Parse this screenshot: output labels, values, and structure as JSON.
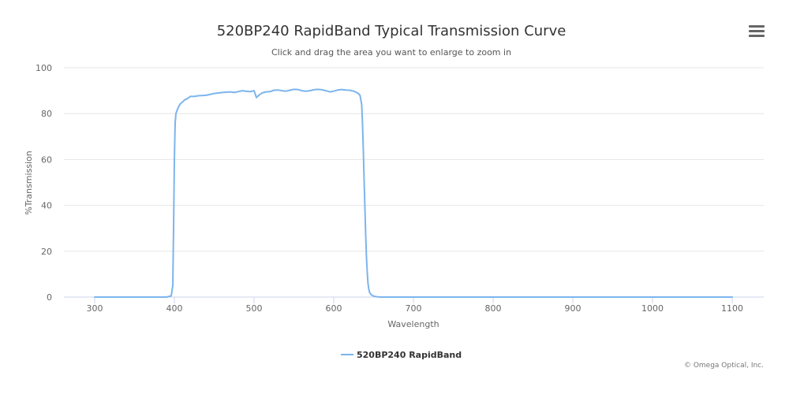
{
  "chart_data": {
    "type": "line",
    "title": "520BP240 RapidBand Typical Transmission Curve",
    "subtitle": "Click and drag the area you want to enlarge to zoom in",
    "xlabel": "Wavelength",
    "ylabel": "%Transmission",
    "xlim": [
      300,
      1100
    ],
    "ylim": [
      0,
      100
    ],
    "xticks": [
      300,
      400,
      500,
      600,
      700,
      800,
      900,
      1000,
      1100
    ],
    "yticks": [
      0,
      20,
      40,
      60,
      80,
      100
    ],
    "grid": "horizontal",
    "legend_position": "bottom-center",
    "series": [
      {
        "name": "520BP240 RapidBand",
        "color": "#7cb5ec",
        "x": [
          300,
          350,
          390,
          396,
          398,
          399,
          400,
          401,
          402,
          404,
          406,
          408,
          410,
          413,
          416,
          420,
          425,
          430,
          440,
          450,
          460,
          470,
          475,
          480,
          485,
          490,
          495,
          500,
          503,
          506,
          510,
          515,
          520,
          525,
          530,
          535,
          540,
          545,
          550,
          555,
          560,
          565,
          570,
          575,
          580,
          585,
          590,
          595,
          600,
          605,
          610,
          615,
          620,
          625,
          630,
          633,
          635,
          636,
          637,
          638,
          639,
          640,
          641,
          642,
          643,
          644,
          645,
          647,
          650,
          655,
          660,
          700,
          800,
          900,
          1000,
          1100
        ],
        "y": [
          0,
          0,
          0,
          0.5,
          5,
          30,
          60,
          76,
          80,
          82,
          83.5,
          84.5,
          85,
          86,
          86.5,
          87.5,
          87.5,
          87.8,
          88,
          88.8,
          89.2,
          89.5,
          89.2,
          89.6,
          90,
          89.8,
          89.6,
          90,
          87,
          88,
          89,
          89.5,
          89.6,
          90.2,
          90.3,
          90,
          89.8,
          90.2,
          90.6,
          90.5,
          90,
          89.8,
          90,
          90.4,
          90.6,
          90.4,
          90,
          89.5,
          89.8,
          90.3,
          90.5,
          90.3,
          90.2,
          89.8,
          89,
          88,
          84,
          76,
          65,
          52,
          40,
          28,
          18,
          11,
          6,
          3.5,
          2,
          1,
          0.4,
          0.1,
          0,
          0,
          0,
          0,
          0,
          0
        ]
      }
    ]
  },
  "credits": "© Omega Optical, Inc."
}
